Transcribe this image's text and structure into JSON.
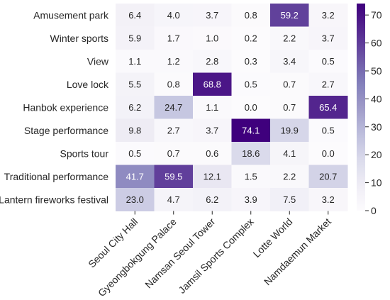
{
  "chart_data": {
    "type": "heatmap",
    "title": "",
    "xlabel": "",
    "ylabel": "",
    "rows": [
      "Amusement park",
      "Winter sports",
      "View",
      "Love lock",
      "Hanbok experience",
      "Stage performance",
      "Sports tour",
      "Traditional performance",
      "Lantern fireworks festival"
    ],
    "columns": [
      "Seoul City Hall",
      "Gyeongbokgung Palace",
      "Namsan Seoul Tower",
      "Jamsil Sports Complex",
      "Lotte World",
      "Namdaemun Market"
    ],
    "values": [
      [
        6.4,
        4.0,
        3.7,
        0.8,
        59.2,
        3.2
      ],
      [
        5.9,
        1.7,
        1.0,
        0.2,
        2.2,
        3.7
      ],
      [
        1.1,
        1.2,
        2.8,
        0.3,
        3.4,
        0.5
      ],
      [
        5.5,
        0.8,
        68.8,
        0.5,
        0.7,
        2.7
      ],
      [
        6.2,
        24.7,
        1.1,
        0.0,
        0.7,
        65.4
      ],
      [
        9.8,
        2.7,
        3.7,
        74.1,
        19.9,
        0.5
      ],
      [
        0.5,
        0.7,
        0.6,
        18.6,
        4.1,
        0.0
      ],
      [
        41.7,
        59.5,
        12.1,
        1.5,
        2.2,
        20.7
      ],
      [
        23.0,
        4.7,
        6.2,
        3.9,
        7.5,
        3.2
      ]
    ],
    "colorbar": {
      "min": 0,
      "max": 74.1,
      "ticks": [
        0,
        10,
        20,
        30,
        40,
        50,
        60,
        70
      ],
      "colormap": "Purples"
    },
    "colors": {
      "low": "#fcfbfd",
      "high": "#3f007d",
      "text_dark": "#262626",
      "text_light": "#ffffff"
    }
  }
}
